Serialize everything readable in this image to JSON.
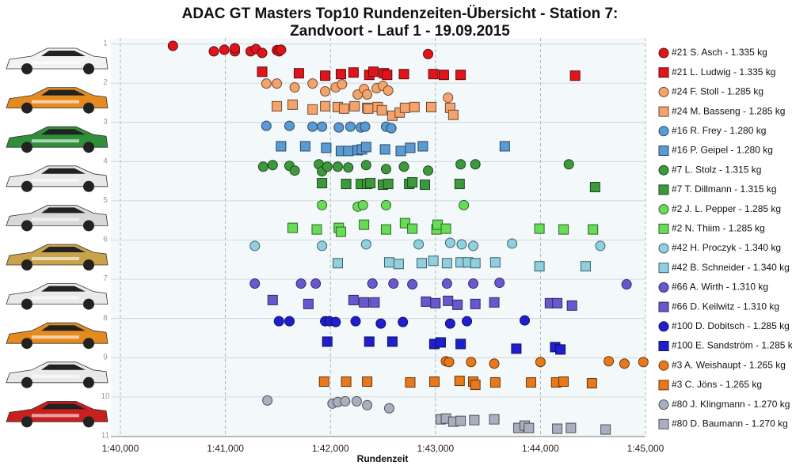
{
  "chart_data": {
    "type": "scatter",
    "title": "ADAC GT Masters Top10 Rundenzeiten-Übersicht - Station 7:",
    "subtitle": "Zandvoort - Lauf 1 - 19.09.2015",
    "x_label": "Rundenzeit",
    "xlim": [
      100,
      105
    ],
    "xticks": [
      {
        "value": 100,
        "label": "1:40,000"
      },
      {
        "value": 101,
        "label": "1:41,000"
      },
      {
        "value": 102,
        "label": "1:42,000"
      },
      {
        "value": 103,
        "label": "1:43,000"
      },
      {
        "value": 104,
        "label": "1:44,000"
      },
      {
        "value": 105,
        "label": "1:45,000"
      }
    ],
    "ylim": [
      1,
      11
    ],
    "y_reversed": true,
    "yticks": [
      1,
      2,
      3,
      4,
      5,
      6,
      7,
      8,
      9,
      10,
      11
    ],
    "grid": true,
    "legend": "right",
    "series": [
      {
        "name": "#21 S. Asch - 1.335 kg",
        "color": "#e0141b",
        "marker": "circle",
        "x": [
          100.5,
          100.89,
          100.99,
          101.09,
          101.09,
          101.24,
          101.29,
          101.35,
          101.49,
          101.51,
          101.53,
          102.93
        ],
        "values": [
          1.06,
          1.2,
          1.16,
          1.2,
          1.12,
          1.2,
          1.14,
          1.24,
          1.17,
          1.2,
          1.16,
          1.27
        ]
      },
      {
        "name": "#21 L. Ludwig - 1.335 kg",
        "color": "#e0141b",
        "marker": "square",
        "x": [
          101.35,
          101.7,
          101.95,
          102.1,
          102.22,
          102.37,
          102.41,
          102.51,
          102.54,
          102.7,
          102.98,
          103.08,
          103.24,
          104.33
        ],
        "values": [
          1.72,
          1.76,
          1.82,
          1.78,
          1.74,
          1.8,
          1.72,
          1.76,
          1.8,
          1.78,
          1.78,
          1.8,
          1.8,
          1.82
        ]
      },
      {
        "name": "#24 F. Stoll - 1.285 kg",
        "color": "#f4a36c",
        "marker": "circle",
        "x": [
          101.39,
          101.49,
          101.66,
          101.83,
          101.95,
          102.05,
          102.11,
          102.26,
          102.32,
          102.35,
          102.44,
          102.5,
          102.55,
          103.12
        ],
        "values": [
          2.02,
          2.02,
          2.12,
          2.02,
          2.22,
          2.12,
          2.04,
          2.3,
          2.16,
          2.3,
          2.14,
          2.08,
          2.2,
          2.38
        ]
      },
      {
        "name": "#24 M. Basseng - 1.285 kg",
        "color": "#f4a36c",
        "marker": "square",
        "x": [
          101.49,
          101.64,
          101.83,
          101.95,
          102.07,
          102.13,
          102.23,
          102.35,
          102.36,
          102.45,
          102.49,
          102.59,
          102.66,
          102.71,
          102.8,
          102.96,
          103.14,
          103.17
        ],
        "values": [
          2.6,
          2.56,
          2.68,
          2.6,
          2.62,
          2.66,
          2.6,
          2.64,
          2.66,
          2.62,
          2.7,
          2.84,
          2.76,
          2.64,
          2.62,
          2.62,
          2.64,
          2.82
        ]
      },
      {
        "name": "#16 R. Frey - 1.280 kg",
        "color": "#5b9bd5",
        "marker": "circle",
        "x": [
          101.39,
          101.61,
          101.83,
          101.92,
          102.08,
          102.19,
          102.29,
          102.33,
          102.53,
          102.58
        ],
        "values": [
          3.1,
          3.1,
          3.12,
          3.12,
          3.14,
          3.12,
          3.14,
          3.12,
          3.12,
          3.16
        ]
      },
      {
        "name": "#16 P. Geipel - 1.280 kg",
        "color": "#5b9bd5",
        "marker": "square",
        "x": [
          101.53,
          101.76,
          101.96,
          102.1,
          102.17,
          102.26,
          102.3,
          102.34,
          102.52,
          102.67,
          102.76,
          102.88,
          103.66
        ],
        "values": [
          3.62,
          3.62,
          3.66,
          3.74,
          3.74,
          3.72,
          3.7,
          3.64,
          3.7,
          3.74,
          3.66,
          3.62,
          3.62
        ]
      },
      {
        "name": "#7 L. Stolz - 1.315 kg",
        "color": "#3c9a3c",
        "marker": "circle",
        "x": [
          101.36,
          101.45,
          101.61,
          101.66,
          101.89,
          101.92,
          101.97,
          102.07,
          102.17,
          102.34,
          102.53,
          102.7,
          102.93,
          103.24,
          103.38,
          104.27
        ],
        "values": [
          4.14,
          4.1,
          4.12,
          4.24,
          4.08,
          4.26,
          4.14,
          4.14,
          4.16,
          4.1,
          4.2,
          4.14,
          4.24,
          4.08,
          4.08,
          4.08
        ]
      },
      {
        "name": "#7 T. Dillmann - 1.315 kg",
        "color": "#3c9a3c",
        "marker": "square",
        "x": [
          101.92,
          102.15,
          102.29,
          102.35,
          102.38,
          102.5,
          102.55,
          102.75,
          102.78,
          102.9,
          103.23,
          104.52
        ],
        "values": [
          4.56,
          4.58,
          4.58,
          4.58,
          4.56,
          4.6,
          4.58,
          4.58,
          4.54,
          4.6,
          4.58,
          4.66
        ]
      },
      {
        "name": "#2 J. L. Pepper - 1.285 kg",
        "color": "#66dd55",
        "marker": "circle",
        "x": [
          101.92,
          102.26,
          102.31,
          102.53,
          103.27
        ],
        "values": [
          5.12,
          5.16,
          5.12,
          5.12,
          5.12
        ]
      },
      {
        "name": "#2 N. Thiim - 1.285 kg",
        "color": "#66dd55",
        "marker": "square",
        "x": [
          101.64,
          101.87,
          102.08,
          102.1,
          102.32,
          102.53,
          102.71,
          102.78,
          103.01,
          103.02,
          103.1,
          103.99,
          104.22,
          104.5
        ],
        "values": [
          5.7,
          5.74,
          5.7,
          5.8,
          5.62,
          5.74,
          5.58,
          5.72,
          5.74,
          5.62,
          5.72,
          5.72,
          5.74,
          5.74
        ]
      },
      {
        "name": "#42 H. Proczyk - 1.340 kg",
        "color": "#8fd0e0",
        "marker": "circle",
        "x": [
          101.28,
          101.92,
          102.34,
          102.84,
          103.14,
          103.25,
          103.36,
          103.73,
          104.57
        ],
        "values": [
          6.16,
          6.16,
          6.12,
          6.12,
          6.08,
          6.12,
          6.16,
          6.1,
          6.16
        ]
      },
      {
        "name": "#42 B. Schneider - 1.340 kg",
        "color": "#8fd0e0",
        "marker": "square",
        "x": [
          102.07,
          102.56,
          102.65,
          102.87,
          102.98,
          103.11,
          103.24,
          103.31,
          103.38,
          103.57,
          103.99,
          104.43
        ],
        "values": [
          6.6,
          6.58,
          6.62,
          6.6,
          6.54,
          6.6,
          6.58,
          6.58,
          6.6,
          6.58,
          6.68,
          6.68
        ]
      },
      {
        "name": "#66 A. Wirth - 1.310 kg",
        "color": "#6858d0",
        "marker": "circle",
        "x": [
          101.28,
          101.72,
          101.86,
          102.4,
          102.6,
          102.78,
          103.11,
          103.36,
          103.61,
          104.82
        ],
        "values": [
          7.12,
          7.12,
          7.12,
          7.12,
          7.12,
          7.14,
          7.12,
          7.12,
          7.1,
          7.14
        ]
      },
      {
        "name": "#66 D. Keilwitz - 1.310 kg",
        "color": "#6858d0",
        "marker": "square",
        "x": [
          101.45,
          101.79,
          102.22,
          102.32,
          102.42,
          102.91,
          103.0,
          103.12,
          103.21,
          103.38,
          103.56,
          104.09,
          104.16,
          104.3
        ],
        "values": [
          7.54,
          7.64,
          7.54,
          7.6,
          7.6,
          7.58,
          7.62,
          7.56,
          7.66,
          7.64,
          7.6,
          7.62,
          7.62,
          7.68
        ]
      },
      {
        "name": "#100 D. Dobitsch - 1.285 kg",
        "color": "#1f1fd0",
        "marker": "circle",
        "x": [
          101.51,
          101.61,
          101.95,
          101.99,
          102.05,
          102.24,
          102.48,
          102.69,
          103.14,
          103.3,
          103.85
        ],
        "values": [
          8.08,
          8.08,
          8.08,
          8.08,
          8.1,
          8.08,
          8.14,
          8.1,
          8.14,
          8.08,
          8.06
        ]
      },
      {
        "name": "#100 E. Sandström - 1.285 kg",
        "color": "#1f1fd0",
        "marker": "square",
        "x": [
          101.97,
          102.37,
          102.59,
          102.99,
          103.05,
          103.24,
          103.77,
          104.14,
          104.19
        ],
        "values": [
          8.6,
          8.6,
          8.6,
          8.66,
          8.62,
          8.66,
          8.78,
          8.74,
          8.8
        ]
      },
      {
        "name": "#3 A. Weishaupt - 1.265 kg",
        "color": "#e8781a",
        "marker": "circle",
        "x": [
          103.1,
          103.13,
          103.34,
          103.56,
          104.0,
          104.65,
          104.8,
          104.98
        ],
        "values": [
          9.1,
          9.12,
          9.12,
          9.16,
          9.12,
          9.1,
          9.16,
          9.12
        ]
      },
      {
        "name": "#3 C. Jöns - 1.265 kg",
        "color": "#e8781a",
        "marker": "square",
        "x": [
          101.94,
          102.15,
          102.35,
          102.76,
          102.99,
          103.23,
          103.36,
          103.38,
          103.57,
          103.91,
          104.15,
          104.22,
          104.49
        ],
        "values": [
          9.62,
          9.62,
          9.62,
          9.64,
          9.62,
          9.6,
          9.62,
          9.7,
          9.64,
          9.64,
          9.64,
          9.62,
          9.66
        ]
      },
      {
        "name": "#80 J. Klingmann - 1.270 kg",
        "color": "#a8b0c0",
        "marker": "circle",
        "x": [
          101.4,
          102.02,
          102.07,
          102.14,
          102.25,
          102.35,
          102.56
        ],
        "values": [
          10.1,
          10.18,
          10.14,
          10.12,
          10.12,
          10.22,
          10.3
        ]
      },
      {
        "name": "#80 D. Baumann - 1.270 kg",
        "color": "#a8b0c0",
        "marker": "square",
        "x": [
          103.05,
          103.1,
          103.17,
          103.24,
          103.37,
          103.56,
          103.79,
          103.85,
          103.89,
          104.16,
          104.29,
          104.62
        ],
        "values": [
          10.58,
          10.56,
          10.64,
          10.62,
          10.6,
          10.58,
          10.8,
          10.74,
          10.8,
          10.82,
          10.8,
          10.84
        ]
      }
    ]
  }
}
